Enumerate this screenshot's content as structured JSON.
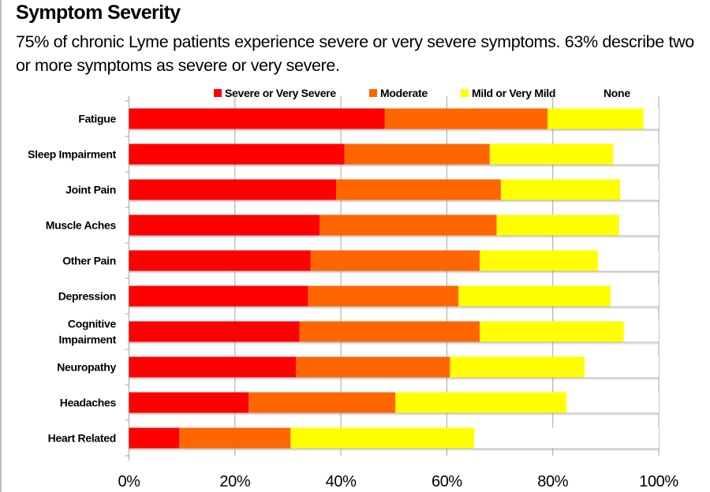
{
  "title": "Symptom Severity",
  "subtitle": "75% of chronic Lyme patients experience severe  or very severe symptoms. 63% describe two or more symptoms as severe or very severe.",
  "chart_data": {
    "type": "bar",
    "orientation": "horizontal",
    "stacked": "100%",
    "title": "Symptom Severity",
    "xlabel": "",
    "ylabel": "",
    "xlim": [
      0,
      100
    ],
    "x_ticks": [
      "0%",
      "20%",
      "40%",
      "60%",
      "80%",
      "100%"
    ],
    "grid": "vertical gridlines on",
    "legend_position": "top",
    "categories": [
      "Fatigue",
      "Sleep Impairment",
      "Joint Pain",
      "Muscle Aches",
      "Other Pain",
      "Depression",
      "Cognitive Impairment",
      "Neuropathy",
      "Headaches",
      "Heart Related"
    ],
    "category_label_lines": [
      [
        "Fatigue"
      ],
      [
        "Sleep Impairment"
      ],
      [
        "Joint Pain"
      ],
      [
        "Muscle Aches"
      ],
      [
        "Other Pain"
      ],
      [
        "Depression"
      ],
      [
        "Cognitive",
        "Impairment"
      ],
      [
        "Neuropathy"
      ],
      [
        "Headaches"
      ],
      [
        "Heart Related"
      ]
    ],
    "series": [
      {
        "name": "Severe or Very Severe",
        "color": "#ff0000",
        "values": [
          48.3,
          40.7,
          39.1,
          36.0,
          34.3,
          33.8,
          32.2,
          31.5,
          22.6,
          9.5
        ]
      },
      {
        "name": "Moderate",
        "color": "#ff6600",
        "values": [
          30.7,
          27.4,
          31.1,
          33.4,
          31.9,
          28.4,
          34.0,
          29.1,
          27.7,
          21.0
        ]
      },
      {
        "name": "Mild or Very Mild",
        "color": "#ffff00",
        "values": [
          18.1,
          23.3,
          22.5,
          23.1,
          22.3,
          28.7,
          27.2,
          25.4,
          32.3,
          34.7
        ]
      },
      {
        "name": "None",
        "color": "#ffffff",
        "values": [
          2.9,
          8.6,
          7.3,
          7.5,
          11.5,
          9.1,
          6.6,
          14.0,
          17.4,
          34.8
        ]
      }
    ]
  }
}
